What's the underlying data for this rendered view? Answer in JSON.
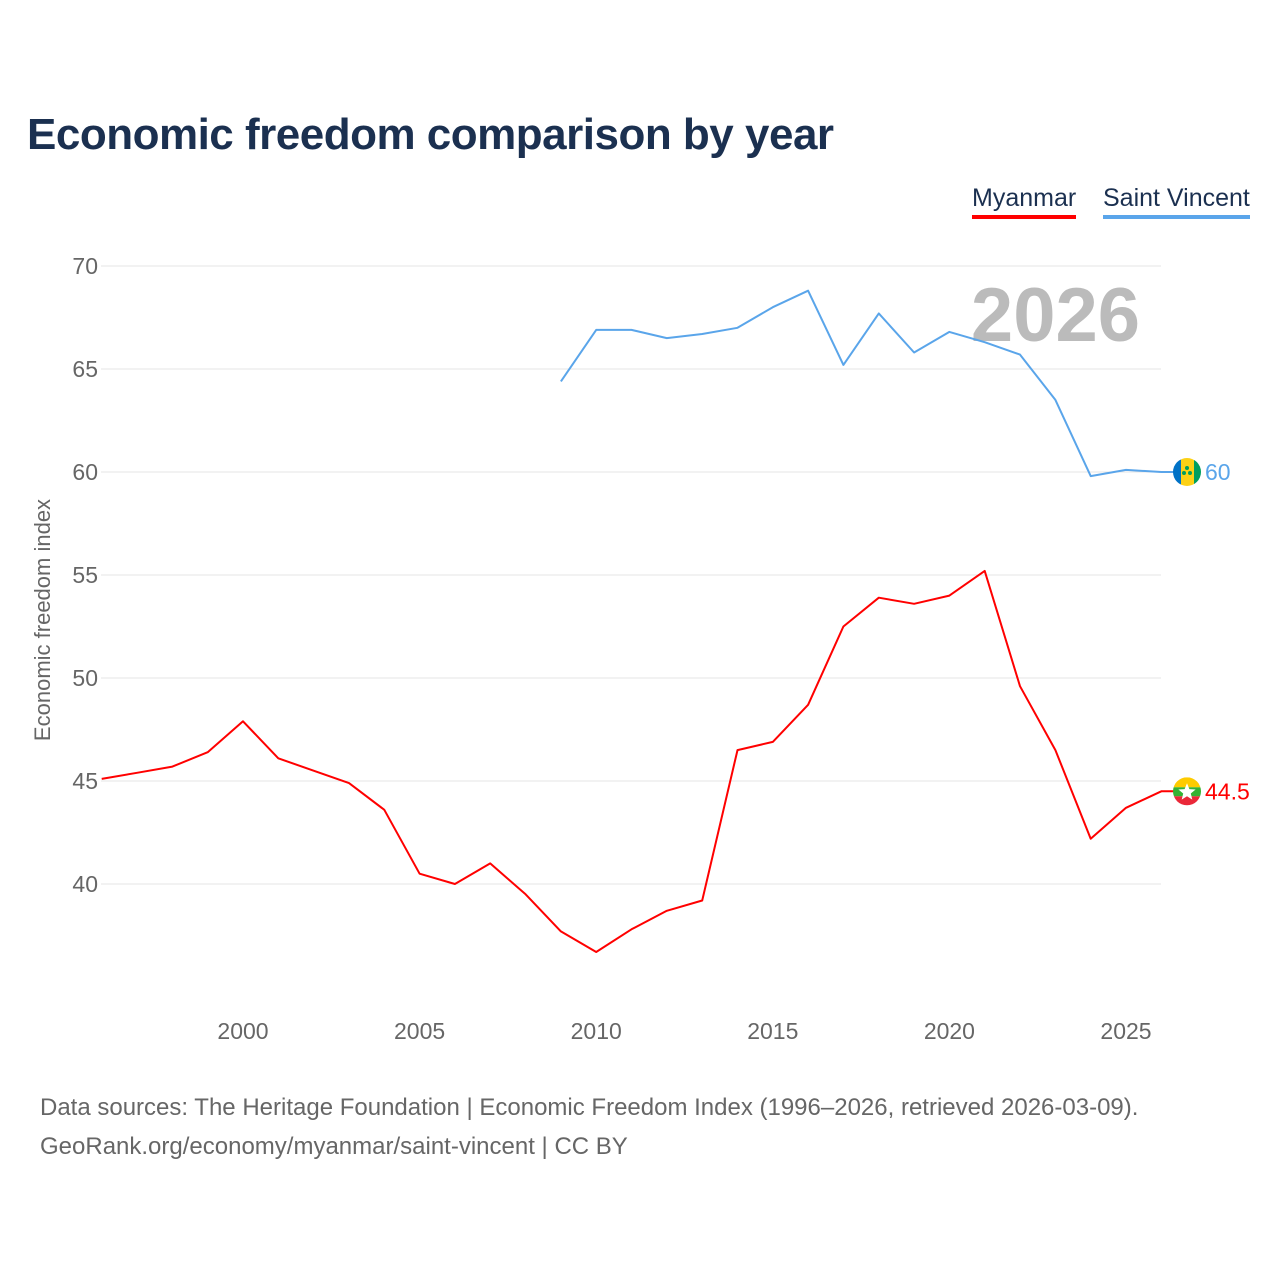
{
  "chart_data": {
    "type": "line",
    "title": "Economic freedom comparison by year",
    "ylabel": "Economic freedom index",
    "xlabel": "",
    "ylim": [
      34,
      70
    ],
    "xlim": [
      1996,
      2026
    ],
    "yticks": [
      40,
      45,
      50,
      55,
      60,
      65,
      70
    ],
    "xticks": [
      2000,
      2005,
      2010,
      2015,
      2020,
      2025
    ],
    "grid": true,
    "legend_placement": "top-right",
    "year_watermark": "2026",
    "series": [
      {
        "name": "Myanmar",
        "color": "#ff0000",
        "end_label": "44.5",
        "x": [
          1996,
          1997,
          1998,
          1999,
          2000,
          2001,
          2002,
          2003,
          2004,
          2005,
          2006,
          2007,
          2008,
          2009,
          2010,
          2011,
          2012,
          2013,
          2014,
          2015,
          2016,
          2017,
          2018,
          2019,
          2020,
          2021,
          2022,
          2023,
          2024,
          2025,
          2026
        ],
        "values": [
          45.1,
          45.4,
          45.7,
          46.4,
          47.9,
          46.1,
          45.5,
          44.9,
          43.6,
          40.5,
          40.0,
          41.0,
          39.5,
          37.7,
          36.7,
          37.8,
          38.7,
          39.2,
          46.5,
          46.9,
          48.7,
          52.5,
          53.9,
          53.6,
          54.0,
          55.2,
          49.6,
          46.5,
          42.2,
          43.7,
          44.5
        ]
      },
      {
        "name": "Saint Vincent",
        "color": "#5aa5ea",
        "end_label": "60",
        "x": [
          2009,
          2010,
          2011,
          2012,
          2013,
          2014,
          2015,
          2016,
          2017,
          2018,
          2019,
          2020,
          2021,
          2022,
          2023,
          2024,
          2025,
          2026
        ],
        "values": [
          64.4,
          66.9,
          66.9,
          66.5,
          66.7,
          67.0,
          68.0,
          68.8,
          65.2,
          67.7,
          65.8,
          66.8,
          66.3,
          65.7,
          63.5,
          59.8,
          60.1,
          60.0
        ]
      }
    ]
  },
  "source_line1": "Data sources: The Heritage Foundation | Economic Freedom Index (1996–2026, retrieved 2026-03-09).",
  "source_line2": "GeoRank.org/economy/myanmar/saint-vincent | CC BY"
}
